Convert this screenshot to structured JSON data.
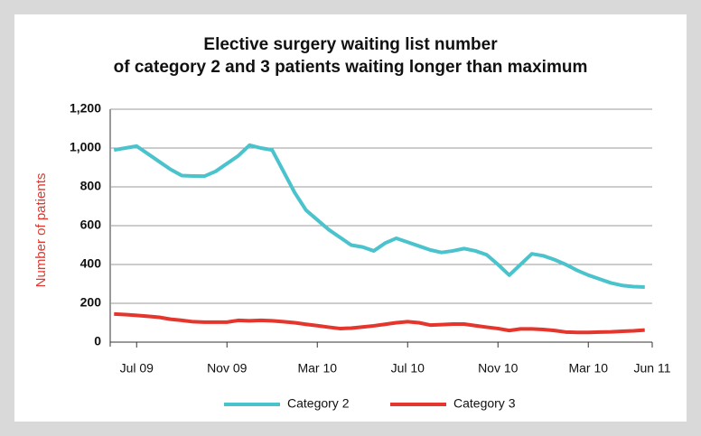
{
  "chart_data": {
    "type": "line",
    "title": [
      "Elective surgery waiting list number",
      "of category 2 and 3 patients waiting longer than maximum"
    ],
    "y_label": "Number of patients",
    "categories": [
      null,
      null,
      "Jul 09",
      null,
      null,
      null,
      null,
      null,
      null,
      null,
      "Nov 09",
      null,
      null,
      null,
      null,
      null,
      null,
      null,
      "Mar 10",
      null,
      null,
      null,
      null,
      null,
      null,
      null,
      "Jul 10",
      null,
      null,
      null,
      null,
      null,
      null,
      null,
      "Nov 10",
      null,
      null,
      null,
      null,
      null,
      null,
      null,
      "Mar 10",
      null,
      null,
      null,
      null,
      null,
      "Jun 11"
    ],
    "series": [
      {
        "name": "Category 2",
        "color": "#4ac3cd",
        "values": [
          990,
          1000,
          1010,
          970,
          930,
          890,
          858,
          856,
          855,
          880,
          920,
          960,
          1015,
          1000,
          990,
          880,
          770,
          680,
          630,
          580,
          540,
          500,
          490,
          470,
          510,
          535,
          515,
          495,
          475,
          462,
          470,
          482,
          470,
          450,
          400,
          345,
          400,
          455,
          445,
          425,
          400,
          370,
          345,
          325,
          305,
          292,
          286,
          284,
          null
        ]
      },
      {
        "name": "Category 3",
        "color": "#e5362e",
        "values": [
          145,
          142,
          138,
          133,
          128,
          118,
          112,
          105,
          103,
          103,
          103,
          112,
          110,
          112,
          110,
          105,
          100,
          92,
          85,
          77,
          70,
          72,
          78,
          84,
          92,
          100,
          105,
          100,
          88,
          90,
          93,
          93,
          85,
          77,
          70,
          60,
          68,
          68,
          65,
          60,
          52,
          50,
          50,
          52,
          53,
          56,
          58,
          62,
          null
        ]
      }
    ],
    "ylim": [
      0,
      1200
    ],
    "yticks": [
      0,
      200,
      400,
      600,
      800,
      {
        "value": 1000,
        "label": "1,000"
      },
      {
        "value": 1200,
        "label": "1,200"
      }
    ],
    "grid": true
  }
}
